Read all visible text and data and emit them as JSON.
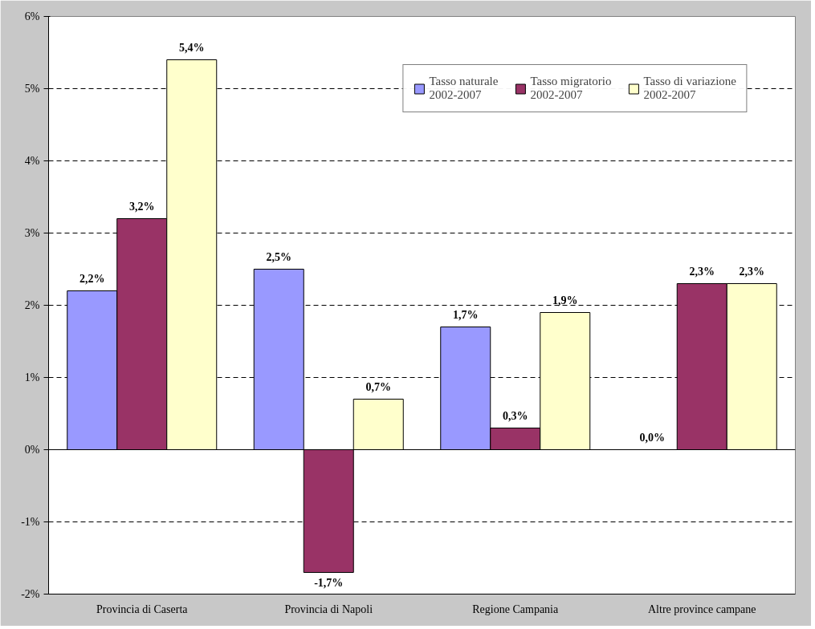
{
  "chart_data": {
    "type": "bar",
    "categories": [
      "Provincia di Caserta",
      "Provincia di Napoli",
      "Regione Campania",
      "Altre province campane"
    ],
    "series": [
      {
        "name": "Tasso naturale\n2002-2007",
        "color": "#9999ff",
        "values": [
          2.2,
          2.5,
          1.7,
          0.0
        ],
        "value_labels": [
          "2,2%",
          "2,5%",
          "1,7%",
          "0,0%"
        ]
      },
      {
        "name": "Tasso migratorio\n2002-2007",
        "color": "#993366",
        "values": [
          3.2,
          -1.7,
          0.3,
          2.3
        ],
        "value_labels": [
          "3,2%",
          "-1,7%",
          "0,3%",
          "2,3%"
        ]
      },
      {
        "name": "Tasso di variazione\n2002-2007",
        "color": "#ffffcc",
        "values": [
          5.4,
          0.7,
          1.9,
          2.3
        ],
        "value_labels": [
          "5,4%",
          "0,7%",
          "1,9%",
          "2,3%"
        ]
      }
    ],
    "ylim": [
      -2,
      6
    ],
    "yticks": [
      {
        "value": -2,
        "label": "-2%"
      },
      {
        "value": -1,
        "label": "-1%"
      },
      {
        "value": 0,
        "label": "0%"
      },
      {
        "value": 1,
        "label": "1%"
      },
      {
        "value": 2,
        "label": "2%"
      },
      {
        "value": 3,
        "label": "3%"
      },
      {
        "value": 4,
        "label": "4%"
      },
      {
        "value": 5,
        "label": "5%"
      },
      {
        "value": 6,
        "label": "6%"
      }
    ],
    "grid": "y",
    "legend": "top right"
  }
}
